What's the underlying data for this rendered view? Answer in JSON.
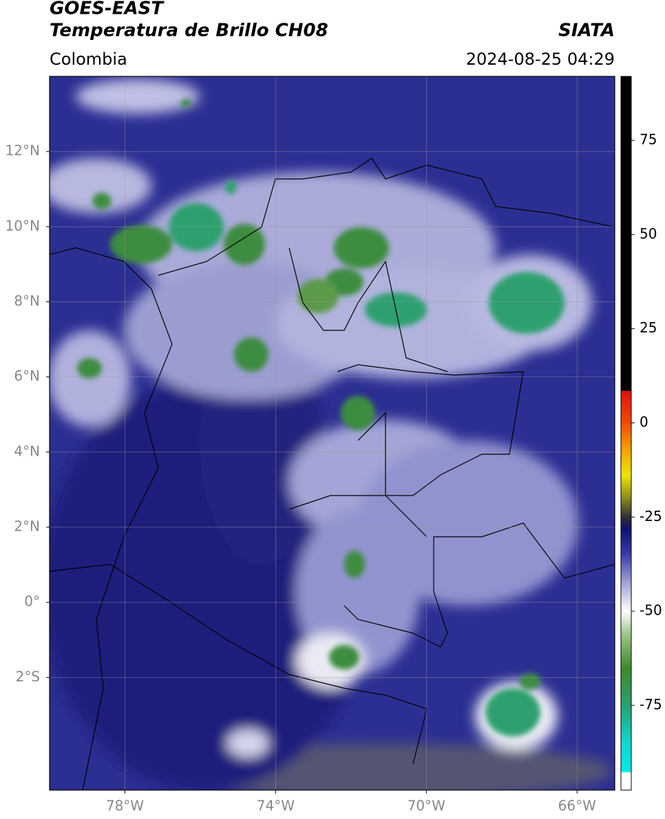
{
  "chart_data": {
    "type": "map",
    "title": "GOES-EAST",
    "subtitle": "Temperatura de Brillo CH08",
    "source": "SIATA",
    "region": "Colombia",
    "timestamp": "2024-08-25 04:29",
    "xlim": [
      -80,
      -65
    ],
    "ylim": [
      -5,
      14
    ],
    "xticks": [
      {
        "value": -78,
        "label": "78°W"
      },
      {
        "value": -74,
        "label": "74°W"
      },
      {
        "value": -70,
        "label": "70°W"
      },
      {
        "value": -66,
        "label": "66°W"
      }
    ],
    "yticks": [
      {
        "value": -2,
        "label": "2°S"
      },
      {
        "value": 0,
        "label": "0°"
      },
      {
        "value": 2,
        "label": "2°N"
      },
      {
        "value": 4,
        "label": "4°N"
      },
      {
        "value": 6,
        "label": "6°N"
      },
      {
        "value": 8,
        "label": "8°N"
      },
      {
        "value": 10,
        "label": "10°N"
      },
      {
        "value": 12,
        "label": "12°N"
      }
    ],
    "grid": true,
    "colorbar": {
      "clim": [
        -97.5,
        92
      ],
      "ticks": [
        -75,
        -50,
        -25,
        0,
        25,
        50,
        75
      ],
      "colormap": [
        {
          "value": 92,
          "color": "#000000"
        },
        {
          "value": 8.6,
          "color": "#000000"
        },
        {
          "value": 8.4,
          "color": "#e0100a"
        },
        {
          "value": 0,
          "color": "#f04a08"
        },
        {
          "value": -7,
          "color": "#f5a000"
        },
        {
          "value": -14,
          "color": "#f0e400"
        },
        {
          "value": -20,
          "color": "#8a8a20"
        },
        {
          "value": -25,
          "color": "#303030"
        },
        {
          "value": -28,
          "color": "#101070"
        },
        {
          "value": -35,
          "color": "#3a3ea8"
        },
        {
          "value": -43,
          "color": "#a8aad8"
        },
        {
          "value": -50,
          "color": "#ffffff"
        },
        {
          "value": -56,
          "color": "#9fc88a"
        },
        {
          "value": -65,
          "color": "#3e8a2c"
        },
        {
          "value": -75,
          "color": "#2aa070"
        },
        {
          "value": -85,
          "color": "#10d8d0"
        },
        {
          "value": -92.5,
          "color": "#00e8e8"
        },
        {
          "value": -93,
          "color": "#ffffff"
        },
        {
          "value": -97.5,
          "color": "#ffffff"
        }
      ]
    }
  }
}
